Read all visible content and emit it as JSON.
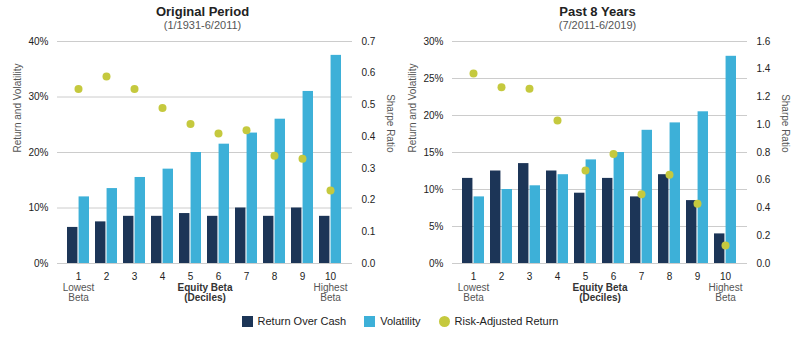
{
  "chart_data": [
    {
      "type": "bar",
      "title": "Original Period",
      "subtitle": "(1/1931-6/2011)",
      "categories": [
        1,
        2,
        3,
        4,
        5,
        6,
        7,
        8,
        9,
        10
      ],
      "xlabel": "Equity Beta\n(Deciles)",
      "annotations": [
        "Lowest\nBeta",
        "Highest\nBeta"
      ],
      "ylabel": "Return and Volatility",
      "y2label": "Sharpe Ratio",
      "series": [
        {
          "name": "Return Over Cash",
          "color": "#1c3557",
          "values": [
            6.5,
            7.5,
            8.5,
            8.5,
            9.0,
            8.5,
            10.0,
            8.5,
            10.0,
            8.5
          ]
        },
        {
          "name": "Volatility",
          "color": "#3db0d8",
          "values": [
            12.0,
            13.5,
            15.5,
            17.0,
            20.0,
            21.5,
            23.5,
            26.0,
            31.0,
            37.5
          ]
        },
        {
          "name": "Risk-Adjusted Return",
          "type": "scatter",
          "marker": "circle",
          "axis": "y2",
          "color": "#c5c93e",
          "values": [
            0.55,
            0.59,
            0.55,
            0.49,
            0.44,
            0.41,
            0.42,
            0.34,
            0.33,
            0.23
          ]
        }
      ],
      "ylim": [
        0,
        40
      ],
      "yticks": [
        {
          "value": 0,
          "label": "0%"
        },
        {
          "value": 10,
          "label": "10%"
        },
        {
          "value": 20,
          "label": "20%"
        },
        {
          "value": 30,
          "label": "30%"
        },
        {
          "value": 40,
          "label": "40%"
        }
      ],
      "y2lim": [
        0,
        0.7
      ],
      "y2ticks": [
        {
          "value": 0,
          "label": "0.0"
        },
        0.1,
        0.2,
        0.3,
        0.4,
        0.5,
        0.6,
        0.7
      ],
      "grid": true,
      "legend": "bottom"
    },
    {
      "type": "bar",
      "title": "Past 8 Years",
      "subtitle": "(7/2011-6/2019)",
      "categories": [
        1,
        2,
        3,
        4,
        5,
        6,
        7,
        8,
        9,
        10
      ],
      "xlabel": "Equity Beta\n(Deciles)",
      "annotations": [
        "Lowest\nBeta",
        "Highest\nBeta"
      ],
      "ylabel": "Return and Volatility",
      "y2label": "Sharpe Ratio",
      "series": [
        {
          "name": "Return Over Cash",
          "color": "#1c3557",
          "values": [
            11.5,
            12.5,
            13.5,
            12.5,
            9.5,
            11.5,
            9.0,
            12.0,
            8.5,
            4.0
          ]
        },
        {
          "name": "Volatility",
          "color": "#3db0d8",
          "values": [
            9.0,
            10.0,
            10.5,
            12.0,
            14.0,
            15.0,
            18.0,
            19.0,
            20.5,
            28.0
          ]
        },
        {
          "name": "Risk-Adjusted Return",
          "type": "scatter",
          "marker": "circle",
          "axis": "y2",
          "color": "#c5c93e",
          "values": [
            1.37,
            1.27,
            1.26,
            1.03,
            0.67,
            0.79,
            0.5,
            0.64,
            0.43,
            0.13
          ]
        }
      ],
      "ylim": [
        0,
        30
      ],
      "yticks": [
        {
          "value": 0,
          "label": "0%"
        },
        {
          "value": 5,
          "label": "5%"
        },
        {
          "value": 10,
          "label": "10%"
        },
        {
          "value": 15,
          "label": "15%"
        },
        {
          "value": 20,
          "label": "20%"
        },
        {
          "value": 25,
          "label": "25%"
        },
        {
          "value": 30,
          "label": "30%"
        }
      ],
      "y2lim": [
        0,
        1.6
      ],
      "y2ticks": [
        {
          "value": 0,
          "label": "0.0"
        },
        0.2,
        0.4,
        0.6,
        0.8,
        {
          "value": 1,
          "label": "1.0"
        },
        1.2,
        1.4,
        1.6
      ],
      "grid": true,
      "legend": "bottom"
    }
  ]
}
